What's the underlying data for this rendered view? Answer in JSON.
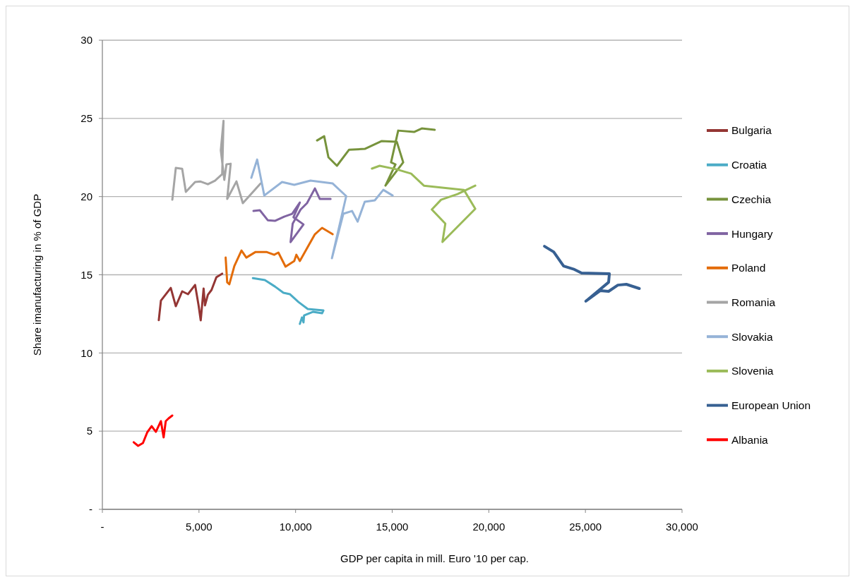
{
  "chart_data": {
    "type": "line",
    "xlabel": "GDP per capita in mill. Euro '10 per cap.",
    "ylabel": "Share imanufacturing in % of GDP",
    "xlim": [
      0,
      30000
    ],
    "xticks": [
      {
        "value": 0,
        "label": "-"
      },
      {
        "value": 5000,
        "label": "5,000"
      },
      {
        "value": 10000,
        "label": "10,000"
      },
      {
        "value": 15000,
        "label": "15,000"
      },
      {
        "value": 20000,
        "label": "20,000"
      },
      {
        "value": 25000,
        "label": "25,000"
      },
      {
        "value": 30000,
        "label": "30,000"
      }
    ],
    "ylim": [
      0,
      30
    ],
    "yticks": [
      {
        "value": 0,
        "label": "-"
      },
      5,
      10,
      15,
      20,
      25,
      30
    ],
    "grid": "y",
    "legend": "right",
    "marker": "none",
    "line_style": "solid",
    "series": [
      {
        "name": "Bulgaria",
        "color": "#943634",
        "x": [
          2920,
          3030,
          3540,
          3800,
          4130,
          4430,
          4800,
          4980,
          5090,
          5240,
          5310,
          5460,
          5650,
          5900,
          6200
        ],
        "values": [
          12.1,
          13.35,
          14.16,
          12.99,
          13.94,
          13.76,
          14.35,
          13.04,
          12.09,
          14.12,
          13.04,
          13.72,
          14.03,
          14.84,
          15.07
        ]
      },
      {
        "name": "Croatia",
        "color": "#4bacc6",
        "x": [
          7790,
          8410,
          8930,
          9370,
          9700,
          10150,
          10630,
          11440,
          11370,
          10890,
          10440,
          10410,
          10330,
          10220
        ],
        "values": [
          14.79,
          14.66,
          14.25,
          13.85,
          13.76,
          13.26,
          12.81,
          12.72,
          12.54,
          12.63,
          12.4,
          11.95,
          12.27,
          11.86
        ]
      },
      {
        "name": "Czechia",
        "color": "#77933c",
        "x": [
          11110,
          11480,
          11700,
          12140,
          12770,
          13580,
          14460,
          15240,
          15570,
          14650,
          15170,
          14940,
          15310,
          16130,
          16530,
          17200
        ],
        "values": [
          23.59,
          23.86,
          22.51,
          21.97,
          23.0,
          23.05,
          23.55,
          23.5,
          22.19,
          20.7,
          22.06,
          22.19,
          24.22,
          24.13,
          24.36,
          24.27
        ]
      },
      {
        "name": "Hungary",
        "color": "#8064a2",
        "x": [
          7820,
          8150,
          8560,
          8930,
          9410,
          9820,
          10220,
          9890,
          10410,
          9740,
          9850,
          10260,
          10590,
          11000,
          11250,
          11810
        ],
        "values": [
          19.08,
          19.13,
          18.49,
          18.45,
          18.72,
          18.9,
          19.62,
          18.68,
          18.22,
          17.09,
          18.27,
          19.17,
          19.58,
          20.52,
          19.85,
          19.85
        ]
      },
      {
        "name": "Poland",
        "color": "#e36c09",
        "x": [
          6380,
          6460,
          6570,
          6830,
          7200,
          7450,
          7930,
          8490,
          8890,
          9110,
          9480,
          9930,
          10040,
          10220,
          10630,
          11000,
          11370,
          11920
        ],
        "values": [
          16.1,
          14.52,
          14.39,
          15.56,
          16.55,
          16.1,
          16.46,
          16.46,
          16.28,
          16.42,
          15.52,
          15.88,
          16.28,
          15.88,
          16.78,
          17.59,
          18.0,
          17.59
        ]
      },
      {
        "name": "Romania",
        "color": "#a5a5a5",
        "x": [
          3620,
          3800,
          4130,
          4320,
          4800,
          5060,
          5460,
          5830,
          6200,
          6270,
          6130,
          6310,
          6420,
          6640,
          6460,
          6940,
          7270,
          8190
        ],
        "values": [
          19.8,
          21.83,
          21.78,
          20.3,
          20.93,
          20.97,
          20.79,
          21.02,
          21.43,
          24.85,
          22.96,
          21.07,
          22.06,
          22.1,
          19.85,
          20.97,
          19.58,
          20.84
        ]
      },
      {
        "name": "Slovakia",
        "color": "#95b3d7",
        "x": [
          7710,
          8010,
          8380,
          9300,
          9930,
          10770,
          11920,
          12620,
          11880,
          12470,
          12920,
          13210,
          13580,
          14100,
          14540,
          15020
        ],
        "values": [
          21.2,
          22.37,
          20.07,
          20.93,
          20.75,
          21.02,
          20.84,
          20.03,
          16.06,
          18.9,
          19.08,
          18.4,
          19.67,
          19.76,
          20.43,
          20.07
        ]
      },
      {
        "name": "Slovenia",
        "color": "#9bbb59",
        "x": [
          13950,
          14350,
          15240,
          15980,
          16640,
          18710,
          19300,
          17600,
          17750,
          17050,
          17530,
          18380,
          19300
        ],
        "values": [
          21.79,
          21.97,
          21.74,
          21.47,
          20.7,
          20.43,
          19.22,
          17.1,
          18.27,
          19.17,
          19.8,
          20.16,
          20.7
        ]
      },
      {
        "name": "European Union",
        "color": "#376092",
        "x": [
          22880,
          23360,
          23870,
          24430,
          24800,
          26240,
          26200,
          25020,
          25760,
          26200,
          26680,
          27120,
          27790
        ],
        "values": [
          16.82,
          16.46,
          15.56,
          15.34,
          15.11,
          15.07,
          14.52,
          13.31,
          13.98,
          13.94,
          14.34,
          14.39,
          14.12
        ]
      },
      {
        "name": "Albania",
        "color": "#ff0000",
        "x": [
          1620,
          1850,
          2100,
          2320,
          2550,
          2770,
          3030,
          3170,
          3280,
          3430,
          3620
        ],
        "values": [
          4.29,
          4.06,
          4.24,
          4.92,
          5.32,
          4.96,
          5.64,
          4.6,
          5.64,
          5.82,
          6.0
        ]
      }
    ]
  }
}
